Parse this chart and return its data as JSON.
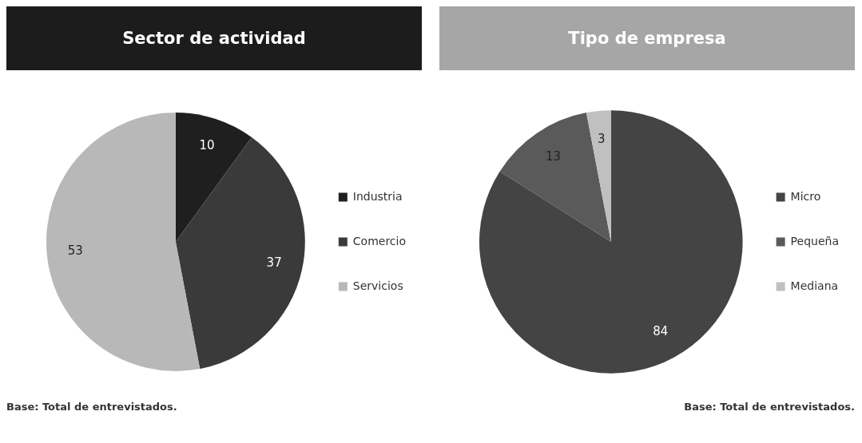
{
  "chart_data": [
    {
      "type": "pie",
      "title": "Sector de actividad",
      "categories": [
        "Industria",
        "Comercio",
        "Servicios"
      ],
      "values": [
        10,
        37,
        53
      ],
      "colors": [
        "#1f1f1f",
        "#3a3a3a",
        "#b8b8b8"
      ],
      "data_labels": true,
      "legend": "right",
      "annotations": [
        "Base: Total de entrevistados."
      ]
    },
    {
      "type": "pie",
      "title": "Tipo de empresa",
      "categories": [
        "Micro",
        "Pequeña",
        "Mediana"
      ],
      "values": [
        84,
        13,
        3
      ],
      "colors": [
        "#444444",
        "#5a5a5a",
        "#c0c0c0"
      ],
      "data_labels": true,
      "legend": "right",
      "annotations": [
        "Base: Total de entrevistados."
      ]
    }
  ]
}
